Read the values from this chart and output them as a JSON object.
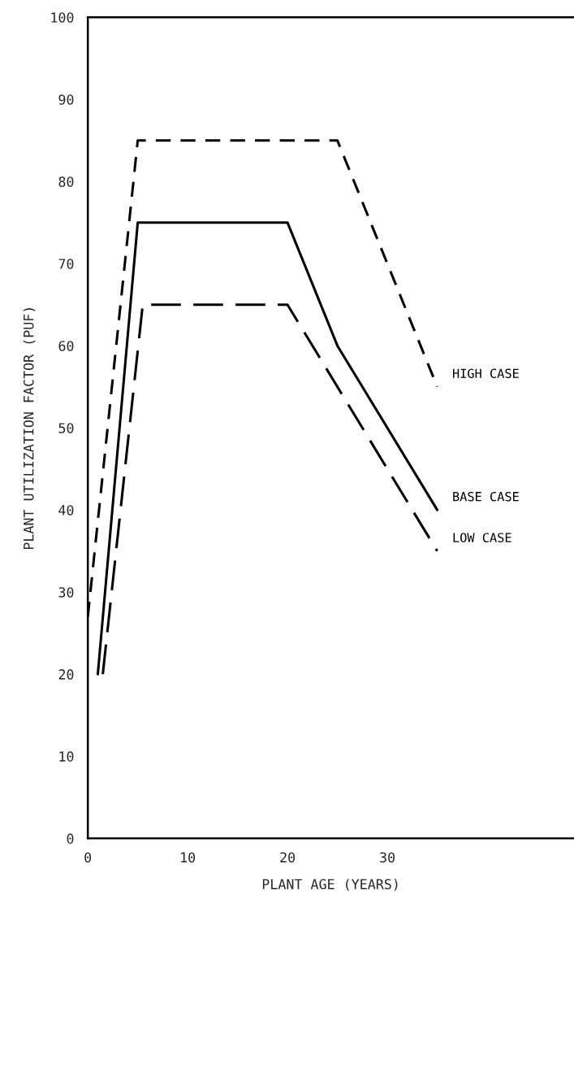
{
  "chart_data": {
    "type": "line",
    "xlabel": "PLANT AGE (YEARS)",
    "ylabel": "PLANT UTILIZATION FACTOR (PUF)",
    "xlim": [
      0,
      48.7
    ],
    "ylim": [
      0,
      100
    ],
    "xticks": [
      0,
      10,
      20,
      30
    ],
    "yticks": [
      0,
      10,
      20,
      30,
      40,
      50,
      60,
      70,
      80,
      90,
      100
    ],
    "grid": false,
    "legend": false,
    "marker": "none",
    "series": [
      {
        "name": "HIGH CASE",
        "color": "#000000",
        "line_style": "dashed",
        "x": [
          0,
          5,
          25,
          35
        ],
        "values": [
          27,
          85,
          85,
          55
        ]
      },
      {
        "name": "BASE CASE",
        "color": "#000000",
        "line_style": "solid",
        "x": [
          1,
          5,
          20,
          25,
          35
        ],
        "values": [
          20,
          75,
          75,
          60,
          40
        ]
      },
      {
        "name": "LOW CASE",
        "color": "#000000",
        "line_style": "dashed",
        "x": [
          1.5,
          5.5,
          20,
          35
        ],
        "values": [
          20,
          65,
          65,
          35
        ]
      }
    ]
  }
}
